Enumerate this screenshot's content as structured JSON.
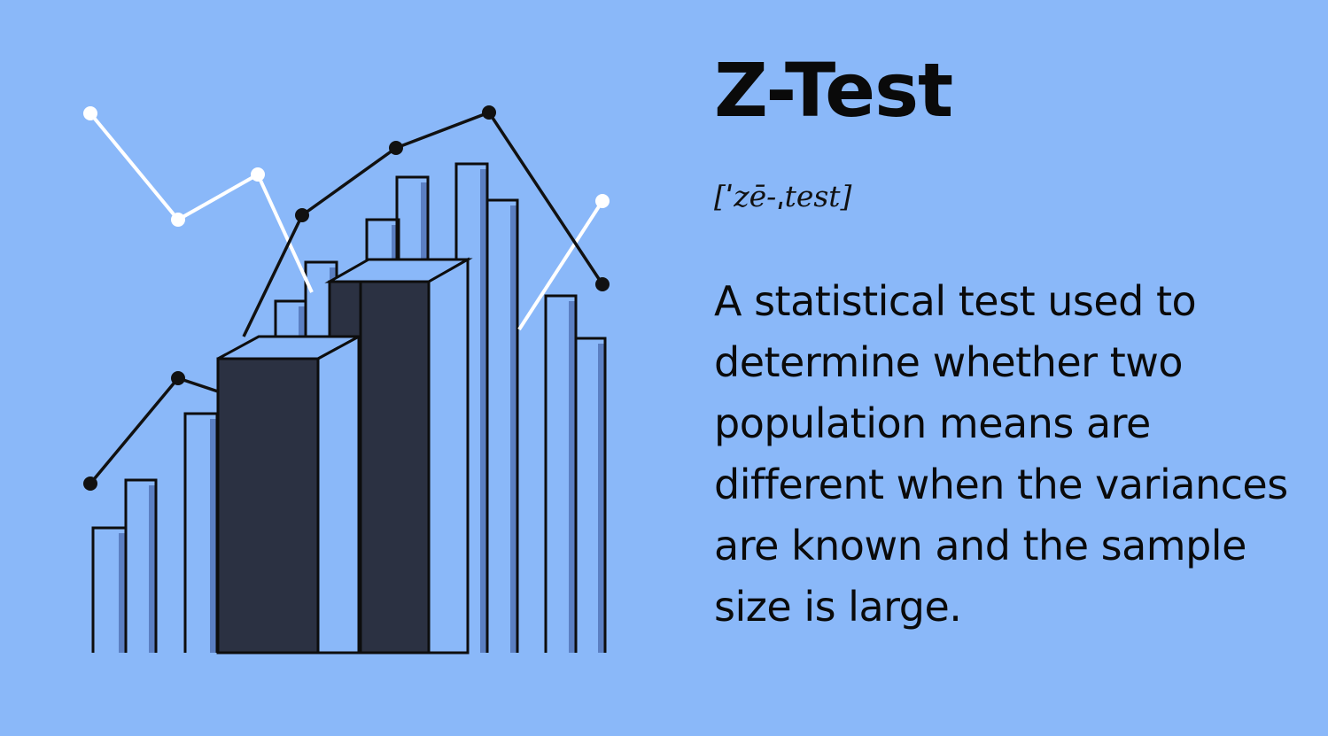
{
  "title": "Z-Test",
  "pronunciation": "[ˈzē-ˌtest]",
  "definition": "A statistical test used to determine whether two population means are different when the variances are known and the sample size is large.",
  "illustration": {
    "background_color": "#8ab8f9",
    "bar_fill": "#8ab8f9",
    "bar_shadow": "#5b7fc2",
    "dark_block": "#2b3142",
    "line_dark": "#111111",
    "line_light": "#ffffff"
  }
}
